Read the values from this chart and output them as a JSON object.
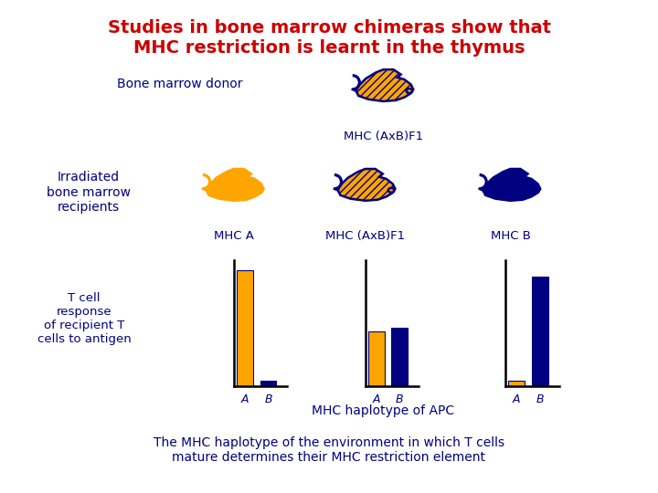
{
  "title": "Studies in bone marrow chimeras show that\nMHC restriction is learnt in the thymus",
  "title_color": "#cc0000",
  "title_fontsize": 14,
  "bg_color": "#ffffff",
  "dark_navy": "#000080",
  "orange": "#FFA500",
  "bone_marrow_donor_label": "Bone marrow donor",
  "donor_label": "MHC (AxB)F1",
  "irradiated_label": "Irradiated\nbone marrow\nrecipients",
  "recipient_labels": [
    "MHC A",
    "MHC (AxB)F1",
    "MHC B"
  ],
  "tcell_label": "T cell\nresponse\nof recipient T\ncells to antigen",
  "xaxis_label": "MHC haplotype of APC",
  "bottom_text": "The MHC haplotype of the environment in which T cells\nmature determines their MHC restriction element",
  "bar_data": {
    "group1": {
      "A": 0.95,
      "B": 0.05
    },
    "group2": {
      "A": 0.45,
      "B": 0.48
    },
    "group3": {
      "A": 0.05,
      "B": 0.9
    }
  }
}
